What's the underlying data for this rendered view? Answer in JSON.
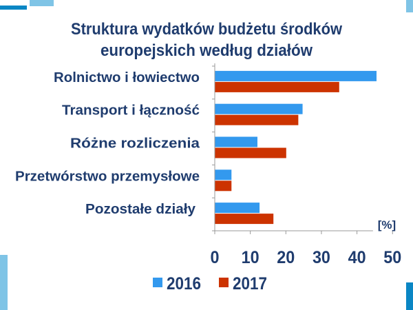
{
  "colors": {
    "series_2016": "#3399ee",
    "series_2017": "#cc3300",
    "text": "#1f3c6e",
    "accent_dark": "#0a86c4",
    "accent_light": "#7fc4e6"
  },
  "chart_data": {
    "type": "bar",
    "orientation": "horizontal",
    "title_lines": [
      "Struktura wydatków budżetu środków",
      "europejskich według działów"
    ],
    "categories": [
      "Rolnictwo i łowiectwo",
      "Transport i łączność",
      "Różne rozliczenia",
      "Przetwórstwo przemysłowe",
      "Pozostałe działy"
    ],
    "series": [
      {
        "name": "2016",
        "values": [
          45.5,
          24.7,
          12.0,
          4.7,
          12.6
        ]
      },
      {
        "name": "2017",
        "values": [
          35.0,
          23.5,
          20.1,
          4.7,
          16.5
        ]
      }
    ],
    "xlabel": "[%]",
    "xlim": [
      0,
      50
    ],
    "xticks": [
      "0",
      "10",
      "20",
      "30",
      "40",
      "50"
    ],
    "grid": false,
    "legend": "bottom"
  }
}
